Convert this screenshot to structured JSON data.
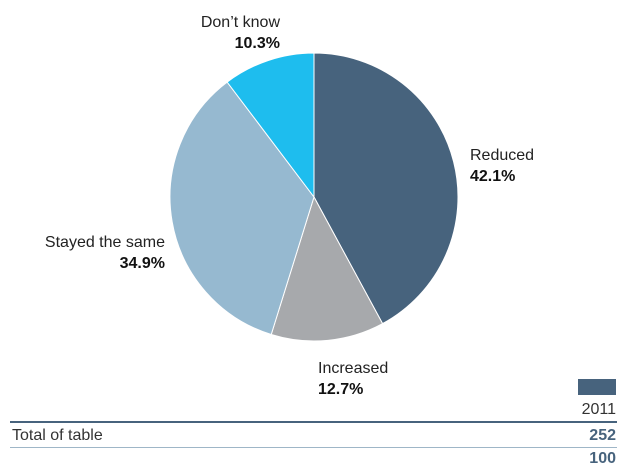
{
  "chart_data": {
    "type": "pie",
    "slices": [
      {
        "label": "Reduced",
        "value": 42.1,
        "display": "42.1%",
        "color": "#47637d"
      },
      {
        "label": "Increased",
        "value": 12.7,
        "display": "12.7%",
        "color": "#a7a9ac"
      },
      {
        "label": "Stayed the same",
        "value": 34.9,
        "display": "34.9%",
        "color": "#96b9d0"
      },
      {
        "label": "Don’t know",
        "value": 10.3,
        "display": "10.3%",
        "color": "#1ebdee"
      }
    ],
    "legend": [
      {
        "label": "2011",
        "color": "#47637d"
      }
    ]
  },
  "table": {
    "row_label": "Total of table",
    "count": "252",
    "percent": "100"
  }
}
